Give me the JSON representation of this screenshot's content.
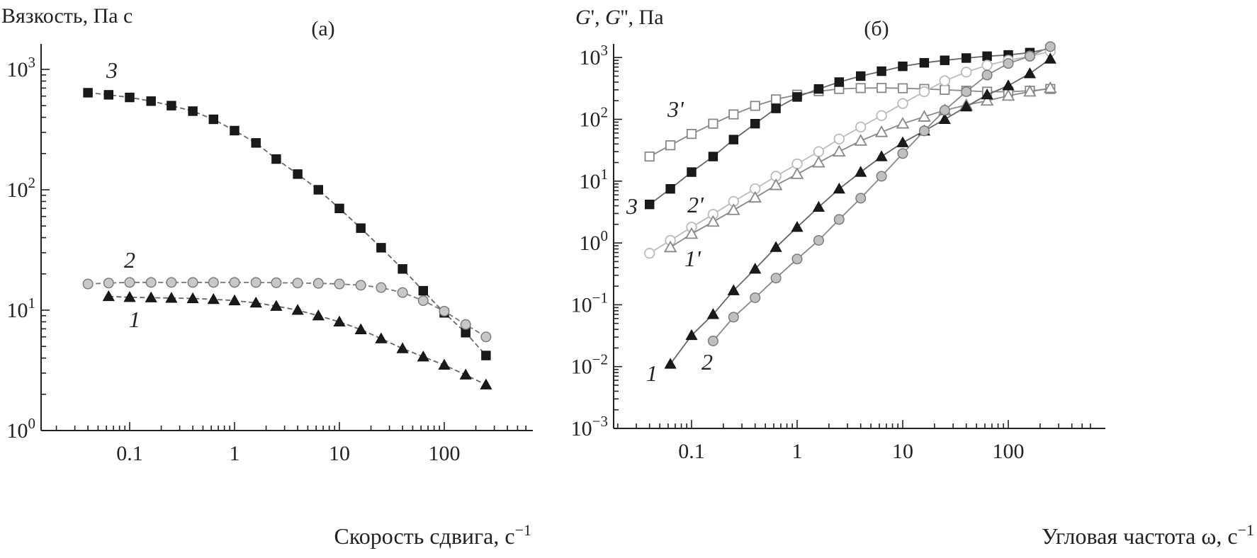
{
  "chart_data": [
    {
      "panel_label": "(а)",
      "type": "scatter",
      "ylabel": "Вязкость, Па с",
      "xlabel": "Скорость сдвига, с−1",
      "xscale": "log",
      "yscale": "log",
      "xlim": [
        0.02,
        600
      ],
      "ylim": [
        1,
        2000
      ],
      "xticks": [
        0.1,
        1,
        10,
        100
      ],
      "xtick_labels": [
        "0.1",
        "1",
        "10",
        "100"
      ],
      "yticks": [
        1,
        10,
        100,
        1000
      ],
      "ytick_labels": [
        [
          "10",
          "0"
        ],
        [
          "10",
          "1"
        ],
        [
          "10",
          "2"
        ],
        [
          "10",
          "3"
        ]
      ],
      "series": [
        {
          "name": "3",
          "marker": "square-filled",
          "color": "#1a1a1a",
          "line_color": "#666666",
          "dashed": true,
          "x": [
            0.04,
            0.063,
            0.1,
            0.16,
            0.25,
            0.4,
            0.63,
            1,
            1.6,
            2.5,
            4,
            6.3,
            10,
            16,
            25,
            40,
            63,
            100,
            160,
            250
          ],
          "y": [
            640,
            615,
            585,
            545,
            500,
            450,
            385,
            310,
            245,
            180,
            135,
            100,
            70,
            48,
            33,
            22,
            14.5,
            9.5,
            6.5,
            4.2
          ]
        },
        {
          "name": "2",
          "marker": "circle-gray",
          "color": "#c8c8c8",
          "line_color": "#777777",
          "dashed": true,
          "x": [
            0.04,
            0.063,
            0.1,
            0.16,
            0.25,
            0.4,
            0.63,
            1,
            1.6,
            2.5,
            4,
            6.3,
            10,
            16,
            25,
            40,
            63,
            100,
            160,
            250
          ],
          "y": [
            16.5,
            16.8,
            17,
            17,
            17,
            17,
            17,
            17,
            17,
            16.9,
            16.8,
            16.7,
            16.5,
            16.1,
            15.4,
            14,
            12,
            9.8,
            7.6,
            6
          ]
        },
        {
          "name": "1",
          "marker": "triangle-filled",
          "color": "#1a1a1a",
          "line_color": "#666666",
          "dashed": true,
          "x": [
            0.063,
            0.1,
            0.16,
            0.25,
            0.4,
            0.63,
            1,
            1.6,
            2.5,
            4,
            6.3,
            10,
            16,
            25,
            40,
            63,
            100,
            160,
            250
          ],
          "y": [
            13,
            12.8,
            12.7,
            12.6,
            12.5,
            12.3,
            12,
            11.5,
            10.8,
            10,
            9,
            8,
            6.9,
            5.8,
            4.8,
            4.1,
            3.5,
            2.9,
            2.4
          ]
        }
      ]
    },
    {
      "panel_label": "(б)",
      "type": "scatter",
      "ylabel": "G', G'', Па",
      "xlabel": "Угловая частота ω, с−1",
      "xscale": "log",
      "yscale": "log",
      "xlim": [
        0.02,
        600
      ],
      "ylim": [
        0.001,
        2000
      ],
      "xticks": [
        0.1,
        1,
        10,
        100
      ],
      "xtick_labels": [
        "0.1",
        "1",
        "10",
        "100"
      ],
      "yticks": [
        0.001,
        0.01,
        0.1,
        1,
        10,
        100,
        1000
      ],
      "ytick_labels": [
        [
          "10",
          "−3"
        ],
        [
          "10",
          "−2"
        ],
        [
          "10",
          "−1"
        ],
        [
          "10",
          "0"
        ],
        [
          "10",
          "1"
        ],
        [
          "10",
          "2"
        ],
        [
          "10",
          "3"
        ]
      ],
      "series": [
        {
          "name": "3'",
          "marker": "square-open",
          "color": "#888888",
          "line_color": "#888888",
          "x": [
            0.04,
            0.063,
            0.1,
            0.16,
            0.25,
            0.4,
            0.63,
            1,
            1.6,
            2.5,
            4,
            6.3,
            10,
            16,
            25,
            40,
            63,
            100,
            160,
            250
          ],
          "y": [
            25,
            38,
            58,
            85,
            120,
            165,
            210,
            250,
            285,
            310,
            320,
            322,
            318,
            310,
            300,
            290,
            280,
            280,
            290,
            310
          ]
        },
        {
          "name": "3",
          "marker": "square-filled",
          "color": "#1a1a1a",
          "line_color": "#666666",
          "x": [
            0.04,
            0.063,
            0.1,
            0.16,
            0.25,
            0.4,
            0.63,
            1,
            1.6,
            2.5,
            4,
            6.3,
            10,
            16,
            25,
            40,
            63,
            100,
            160,
            250
          ],
          "y": [
            4.2,
            7.5,
            14,
            25,
            47,
            85,
            150,
            230,
            310,
            400,
            500,
            600,
            720,
            820,
            900,
            980,
            1050,
            1100,
            1200,
            1400
          ]
        },
        {
          "name": "2'",
          "marker": "circle-open",
          "color": "#bbbbbb",
          "line_color": "#bbbbbb",
          "x": [
            0.04,
            0.063,
            0.1,
            0.16,
            0.25,
            0.4,
            0.63,
            1,
            1.6,
            2.5,
            4,
            6.3,
            10,
            16,
            25,
            40,
            63,
            100,
            160,
            250
          ],
          "y": [
            0.68,
            1.1,
            1.8,
            2.9,
            4.7,
            7.5,
            12,
            19,
            30,
            48,
            75,
            115,
            180,
            280,
            420,
            580,
            750,
            900,
            1050,
            1250
          ]
        },
        {
          "name": "1'",
          "marker": "triangle-open",
          "color": "#888888",
          "line_color": "#888888",
          "x": [
            0.063,
            0.1,
            0.16,
            0.25,
            0.4,
            0.63,
            1,
            1.6,
            2.5,
            4,
            6.3,
            10,
            16,
            25,
            40,
            63,
            100,
            160,
            250
          ],
          "y": [
            0.85,
            1.4,
            2.2,
            3.4,
            5.4,
            8.6,
            13,
            20,
            30,
            45,
            62,
            85,
            110,
            140,
            170,
            200,
            240,
            280,
            320
          ]
        },
        {
          "name": "1",
          "marker": "triangle-filled",
          "color": "#1a1a1a",
          "line_color": "#666666",
          "x": [
            0.063,
            0.1,
            0.16,
            0.25,
            0.4,
            0.63,
            1,
            1.6,
            2.5,
            4,
            6.3,
            10,
            16,
            25,
            40,
            63,
            100,
            160,
            250
          ],
          "y": [
            0.011,
            0.032,
            0.07,
            0.17,
            0.38,
            0.85,
            1.8,
            3.8,
            7.5,
            14,
            25,
            42,
            65,
            100,
            160,
            250,
            350,
            550,
            950
          ]
        },
        {
          "name": "2",
          "marker": "circle-gray",
          "color": "#c0c0c0",
          "line_color": "#888888",
          "x": [
            0.16,
            0.25,
            0.4,
            0.63,
            1,
            1.6,
            2.5,
            4,
            6.3,
            10,
            16,
            25,
            40,
            63,
            100,
            160,
            250
          ],
          "y": [
            0.026,
            0.063,
            0.13,
            0.27,
            0.55,
            1.1,
            2.4,
            5.3,
            12,
            28,
            65,
            140,
            280,
            520,
            800,
            1050,
            1500
          ]
        }
      ]
    }
  ],
  "series_labels": {
    "a": [
      "3",
      "2",
      "1"
    ],
    "b": [
      "3'",
      "3",
      "2'",
      "1'",
      "1",
      "2"
    ]
  }
}
